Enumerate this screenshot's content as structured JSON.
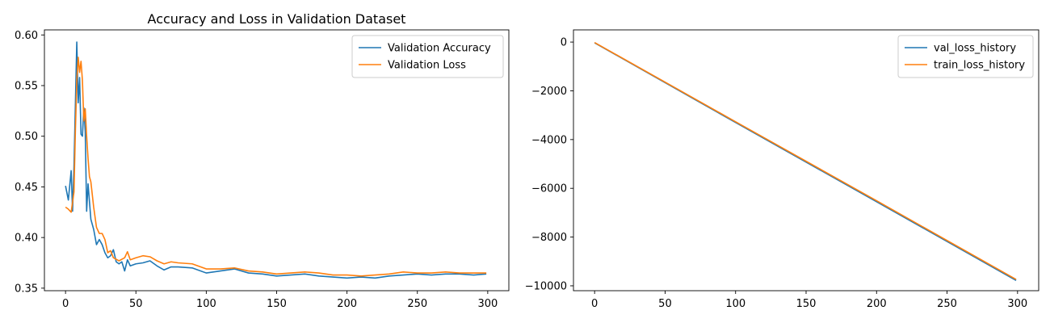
{
  "chart_data": [
    {
      "type": "line",
      "title": "Accuracy and Loss in Validation Dataset",
      "xlabel": "",
      "ylabel": "",
      "xlim": [
        -15,
        315
      ],
      "ylim": [
        0.3475,
        0.605
      ],
      "xticks": [
        0,
        50,
        100,
        150,
        200,
        250,
        300
      ],
      "yticks": [
        0.35,
        0.4,
        0.45,
        0.5,
        0.55,
        0.6
      ],
      "ytick_labels": [
        "0.35",
        "0.40",
        "0.45",
        "0.50",
        "0.55",
        "0.60"
      ],
      "grid": false,
      "legend_position": "upper right",
      "series": [
        {
          "name": "Validation Accuracy",
          "color": "#1f77b4",
          "points": [
            [
              0,
              0.451
            ],
            [
              2,
              0.437
            ],
            [
              4,
              0.466
            ],
            [
              5,
              0.426
            ],
            [
              6,
              0.47
            ],
            [
              8,
              0.593
            ],
            [
              9,
              0.533
            ],
            [
              10,
              0.558
            ],
            [
              11,
              0.502
            ],
            [
              12,
              0.5
            ],
            [
              13,
              0.528
            ],
            [
              14,
              0.505
            ],
            [
              15,
              0.426
            ],
            [
              16,
              0.453
            ],
            [
              18,
              0.418
            ],
            [
              20,
              0.408
            ],
            [
              22,
              0.393
            ],
            [
              24,
              0.398
            ],
            [
              26,
              0.393
            ],
            [
              28,
              0.385
            ],
            [
              30,
              0.38
            ],
            [
              32,
              0.382
            ],
            [
              34,
              0.388
            ],
            [
              36,
              0.376
            ],
            [
              38,
              0.374
            ],
            [
              40,
              0.376
            ],
            [
              42,
              0.367
            ],
            [
              44,
              0.378
            ],
            [
              46,
              0.372
            ],
            [
              50,
              0.374
            ],
            [
              55,
              0.375
            ],
            [
              60,
              0.377
            ],
            [
              65,
              0.372
            ],
            [
              70,
              0.368
            ],
            [
              75,
              0.371
            ],
            [
              80,
              0.371
            ],
            [
              90,
              0.37
            ],
            [
              100,
              0.365
            ],
            [
              110,
              0.367
            ],
            [
              120,
              0.369
            ],
            [
              130,
              0.365
            ],
            [
              140,
              0.364
            ],
            [
              150,
              0.362
            ],
            [
              160,
              0.363
            ],
            [
              170,
              0.364
            ],
            [
              180,
              0.362
            ],
            [
              190,
              0.361
            ],
            [
              200,
              0.36
            ],
            [
              210,
              0.361
            ],
            [
              220,
              0.36
            ],
            [
              230,
              0.362
            ],
            [
              240,
              0.363
            ],
            [
              250,
              0.364
            ],
            [
              260,
              0.363
            ],
            [
              270,
              0.364
            ],
            [
              280,
              0.364
            ],
            [
              290,
              0.363
            ],
            [
              299,
              0.364
            ]
          ]
        },
        {
          "name": "Validation Loss",
          "color": "#ff7f0e",
          "points": [
            [
              0,
              0.43
            ],
            [
              2,
              0.428
            ],
            [
              4,
              0.425
            ],
            [
              6,
              0.445
            ],
            [
              7,
              0.505
            ],
            [
              8,
              0.555
            ],
            [
              9,
              0.578
            ],
            [
              10,
              0.563
            ],
            [
              11,
              0.574
            ],
            [
              12,
              0.555
            ],
            [
              13,
              0.515
            ],
            [
              14,
              0.527
            ],
            [
              15,
              0.5
            ],
            [
              16,
              0.478
            ],
            [
              17,
              0.46
            ],
            [
              18,
              0.455
            ],
            [
              20,
              0.43
            ],
            [
              22,
              0.41
            ],
            [
              24,
              0.404
            ],
            [
              26,
              0.404
            ],
            [
              28,
              0.398
            ],
            [
              30,
              0.385
            ],
            [
              32,
              0.387
            ],
            [
              34,
              0.38
            ],
            [
              38,
              0.377
            ],
            [
              42,
              0.38
            ],
            [
              44,
              0.386
            ],
            [
              46,
              0.378
            ],
            [
              50,
              0.38
            ],
            [
              55,
              0.382
            ],
            [
              60,
              0.381
            ],
            [
              65,
              0.377
            ],
            [
              70,
              0.374
            ],
            [
              75,
              0.376
            ],
            [
              80,
              0.375
            ],
            [
              90,
              0.374
            ],
            [
              100,
              0.369
            ],
            [
              110,
              0.369
            ],
            [
              120,
              0.37
            ],
            [
              130,
              0.367
            ],
            [
              140,
              0.366
            ],
            [
              150,
              0.364
            ],
            [
              160,
              0.365
            ],
            [
              170,
              0.366
            ],
            [
              180,
              0.365
            ],
            [
              190,
              0.363
            ],
            [
              200,
              0.363
            ],
            [
              210,
              0.362
            ],
            [
              220,
              0.363
            ],
            [
              230,
              0.364
            ],
            [
              240,
              0.366
            ],
            [
              250,
              0.365
            ],
            [
              260,
              0.365
            ],
            [
              270,
              0.366
            ],
            [
              280,
              0.365
            ],
            [
              290,
              0.365
            ],
            [
              299,
              0.365
            ]
          ]
        }
      ]
    },
    {
      "type": "line",
      "title": "",
      "xlabel": "",
      "ylabel": "",
      "xlim": [
        -15,
        315
      ],
      "ylim": [
        -10200,
        500
      ],
      "xticks": [
        0,
        50,
        100,
        150,
        200,
        250,
        300
      ],
      "yticks": [
        0,
        -2000,
        -4000,
        -6000,
        -8000,
        -10000
      ],
      "ytick_labels": [
        "0",
        "−2000",
        "−4000",
        "−6000",
        "−8000",
        "−10000"
      ],
      "grid": false,
      "legend_position": "upper right",
      "series": [
        {
          "name": "val_loss_history",
          "color": "#1f77b4",
          "points": [
            [
              0,
              -30
            ],
            [
              100,
              -3300
            ],
            [
              200,
              -6550
            ],
            [
              299,
              -9780
            ]
          ]
        },
        {
          "name": "train_loss_history",
          "color": "#ff7f0e",
          "points": [
            [
              0,
              -20
            ],
            [
              100,
              -3270
            ],
            [
              200,
              -6510
            ],
            [
              299,
              -9740
            ]
          ]
        }
      ]
    }
  ]
}
